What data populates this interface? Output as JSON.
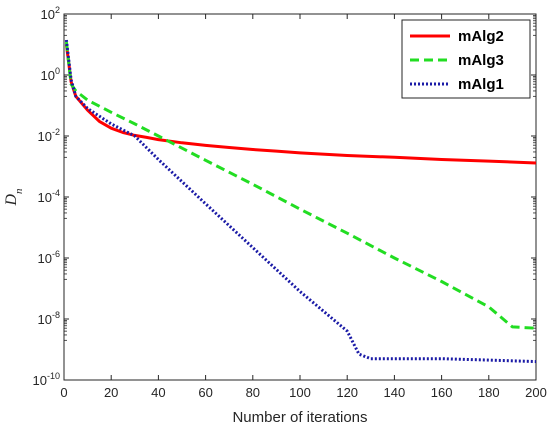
{
  "chart_data": {
    "type": "line",
    "xlabel": "Number of iterations",
    "ylabel": "D",
    "ylabel_subscript": "n",
    "xlim": [
      0,
      200
    ],
    "ylim_exp": [
      -10,
      2
    ],
    "yscale": "log",
    "grid": false,
    "legend_position": "top-right",
    "x_ticks": [
      "0",
      "20",
      "40",
      "60",
      "80",
      "100",
      "120",
      "140",
      "160",
      "180",
      "200"
    ],
    "y_ticks": [
      {
        "base": "10",
        "exp": "2"
      },
      {
        "base": "10",
        "exp": "0"
      },
      {
        "base": "10",
        "exp": "-2"
      },
      {
        "base": "10",
        "exp": "-4"
      },
      {
        "base": "10",
        "exp": "-6"
      },
      {
        "base": "10",
        "exp": "-8"
      },
      {
        "base": "10",
        "exp": "-10"
      }
    ],
    "series": [
      {
        "name": "mAlg2",
        "color": "#ff0000",
        "style": "solid",
        "points": [
          [
            1,
            10
          ],
          [
            3,
            0.6
          ],
          [
            5,
            0.2
          ],
          [
            10,
            0.07
          ],
          [
            15,
            0.03
          ],
          [
            20,
            0.018
          ],
          [
            25,
            0.013
          ],
          [
            30,
            0.0105
          ],
          [
            35,
            0.009
          ],
          [
            40,
            0.0076
          ],
          [
            50,
            0.006
          ],
          [
            60,
            0.0049
          ],
          [
            70,
            0.0042
          ],
          [
            80,
            0.0036
          ],
          [
            90,
            0.0032
          ],
          [
            100,
            0.0028
          ],
          [
            120,
            0.0023
          ],
          [
            140,
            0.002
          ],
          [
            160,
            0.0017
          ],
          [
            180,
            0.0015
          ],
          [
            200,
            0.0013
          ]
        ]
      },
      {
        "name": "mAlg3",
        "color": "#22dd22",
        "style": "dashed",
        "points": [
          [
            1,
            12
          ],
          [
            3,
            0.5
          ],
          [
            5,
            0.3
          ],
          [
            10,
            0.15
          ],
          [
            20,
            0.06
          ],
          [
            30,
            0.025
          ],
          [
            40,
            0.01
          ],
          [
            60,
            0.0016
          ],
          [
            80,
            0.00026
          ],
          [
            100,
            4e-05
          ],
          [
            120,
            6.5e-06
          ],
          [
            140,
            1e-06
          ],
          [
            160,
            1.7e-07
          ],
          [
            180,
            2.5e-08
          ],
          [
            190,
            5.5e-09
          ],
          [
            200,
            5e-09
          ]
        ]
      },
      {
        "name": "mAlg1",
        "color": "#1a1aa6",
        "style": "dotted",
        "points": [
          [
            1,
            14
          ],
          [
            3,
            0.7
          ],
          [
            5,
            0.2
          ],
          [
            10,
            0.08
          ],
          [
            20,
            0.025
          ],
          [
            30,
            0.01
          ],
          [
            40,
            0.0017
          ],
          [
            60,
            6e-05
          ],
          [
            80,
            2.2e-06
          ],
          [
            100,
            8e-08
          ],
          [
            120,
            4e-09
          ],
          [
            125,
            7e-10
          ],
          [
            130,
            5e-10
          ],
          [
            160,
            5e-10
          ],
          [
            180,
            4.5e-10
          ],
          [
            200,
            4e-10
          ]
        ]
      }
    ]
  }
}
